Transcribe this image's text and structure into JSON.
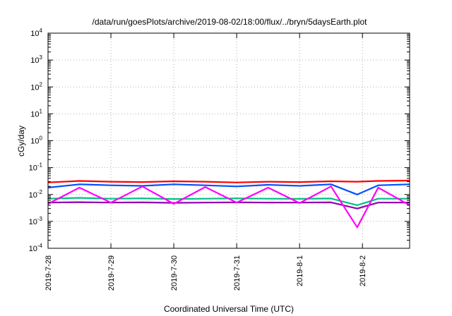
{
  "chart_data": {
    "type": "line",
    "title": "/data/run/goesPlots/archive/2019-08-02/18:00/flux/../bryn/5daysEarth.plot",
    "xlabel": "Coordinated Universal Time (UTC)",
    "ylabel": "cGy/day",
    "yscale": "log",
    "ylim": [
      0.0001,
      10000
    ],
    "xlim": [
      "2019-07-28 00:00",
      "2019-08-02 18:00"
    ],
    "grid": true,
    "legend": "none",
    "x_ticks": [
      "2019-7-28",
      "2019-7-29",
      "2019-7-30",
      "2019-7-31",
      "2019-8-1",
      "2019-8-2"
    ],
    "y_ticks": [
      {
        "base": "10",
        "exp": "-4"
      },
      {
        "base": "10",
        "exp": "-3"
      },
      {
        "base": "10",
        "exp": "-2"
      },
      {
        "base": "10",
        "exp": "-1"
      },
      {
        "base": "10",
        "exp": "0"
      },
      {
        "base": "10",
        "exp": "1"
      },
      {
        "base": "10",
        "exp": "2"
      },
      {
        "base": "10",
        "exp": "3"
      },
      {
        "base": "10",
        "exp": "4"
      }
    ],
    "series": [
      {
        "color": "#ff0000",
        "x": [
          "2019-07-28 00:00",
          "2019-07-28 12:00",
          "2019-07-29 00:00",
          "2019-07-29 12:00",
          "2019-07-30 00:00",
          "2019-07-30 12:00",
          "2019-07-31 00:00",
          "2019-07-31 12:00",
          "2019-08-01 00:00",
          "2019-08-01 12:00",
          "2019-08-01 22:00",
          "2019-08-02 06:00",
          "2019-08-02 18:00"
        ],
        "y": [
          0.028,
          0.032,
          0.03,
          0.029,
          0.031,
          0.03,
          0.028,
          0.03,
          0.029,
          0.031,
          0.03,
          0.032,
          0.033
        ]
      },
      {
        "color": "#0050ff",
        "x": [
          "2019-07-28 00:00",
          "2019-07-28 12:00",
          "2019-07-29 00:00",
          "2019-07-29 12:00",
          "2019-07-30 00:00",
          "2019-07-30 12:00",
          "2019-07-31 00:00",
          "2019-07-31 12:00",
          "2019-08-01 00:00",
          "2019-08-01 12:00",
          "2019-08-01 22:00",
          "2019-08-02 06:00",
          "2019-08-02 18:00"
        ],
        "y": [
          0.018,
          0.024,
          0.022,
          0.021,
          0.024,
          0.022,
          0.02,
          0.023,
          0.021,
          0.024,
          0.01,
          0.022,
          0.024
        ]
      },
      {
        "color": "#00c080",
        "x": [
          "2019-07-28 00:00",
          "2019-07-28 12:00",
          "2019-07-29 00:00",
          "2019-07-29 12:00",
          "2019-07-30 00:00",
          "2019-07-30 12:00",
          "2019-07-31 00:00",
          "2019-07-31 12:00",
          "2019-08-01 00:00",
          "2019-08-01 12:00",
          "2019-08-01 22:00",
          "2019-08-02 06:00",
          "2019-08-02 18:00"
        ],
        "y": [
          0.007,
          0.0075,
          0.007,
          0.0072,
          0.0068,
          0.007,
          0.0072,
          0.007,
          0.0069,
          0.0071,
          0.004,
          0.007,
          0.007
        ]
      },
      {
        "color": "#9000b0",
        "x": [
          "2019-07-28 00:00",
          "2019-07-28 12:00",
          "2019-07-29 00:00",
          "2019-07-29 12:00",
          "2019-07-30 00:00",
          "2019-07-30 12:00",
          "2019-07-31 00:00",
          "2019-07-31 12:00",
          "2019-08-01 00:00",
          "2019-08-01 12:00",
          "2019-08-01 22:00",
          "2019-08-02 06:00",
          "2019-08-02 18:00"
        ],
        "y": [
          0.005,
          0.0052,
          0.005,
          0.0051,
          0.0049,
          0.005,
          0.0051,
          0.005,
          0.005,
          0.0051,
          0.003,
          0.005,
          0.005
        ]
      },
      {
        "color": "#ff00ff",
        "x": [
          "2019-07-28 00:00",
          "2019-07-28 12:00",
          "2019-07-29 00:00",
          "2019-07-29 12:00",
          "2019-07-30 00:00",
          "2019-07-30 12:00",
          "2019-07-31 00:00",
          "2019-07-31 12:00",
          "2019-08-01 00:00",
          "2019-08-01 12:00",
          "2019-08-01 22:00",
          "2019-08-02 06:00",
          "2019-08-02 18:00"
        ],
        "y": [
          0.0045,
          0.018,
          0.005,
          0.02,
          0.0045,
          0.019,
          0.005,
          0.018,
          0.0048,
          0.02,
          0.0006,
          0.018,
          0.004
        ]
      }
    ]
  }
}
